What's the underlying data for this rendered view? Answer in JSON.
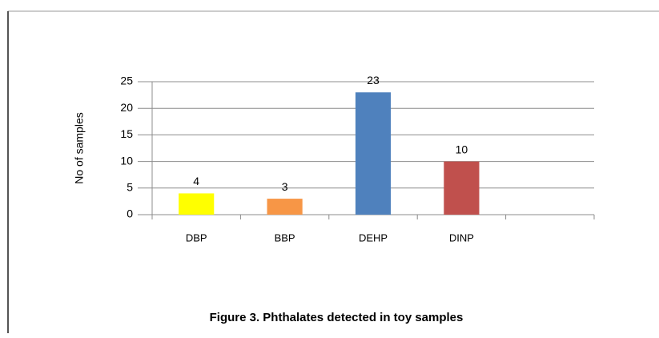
{
  "chart_data": {
    "type": "bar",
    "title": "Figure 3. Phthalates detected in toy samples",
    "y_label": "No of samples",
    "categories": [
      "DBP",
      "BBP",
      "DEHP",
      "DINP",
      null
    ],
    "series": [
      {
        "values": [
          4,
          3,
          23,
          10,
          null
        ],
        "colors": [
          "#ffff00",
          "#f79646",
          "#4f81bd",
          "#c0504d",
          null
        ]
      }
    ],
    "ylim": [
      0,
      25
    ],
    "yticks": [
      0,
      5,
      10,
      15,
      20,
      25
    ],
    "grid": true
  }
}
